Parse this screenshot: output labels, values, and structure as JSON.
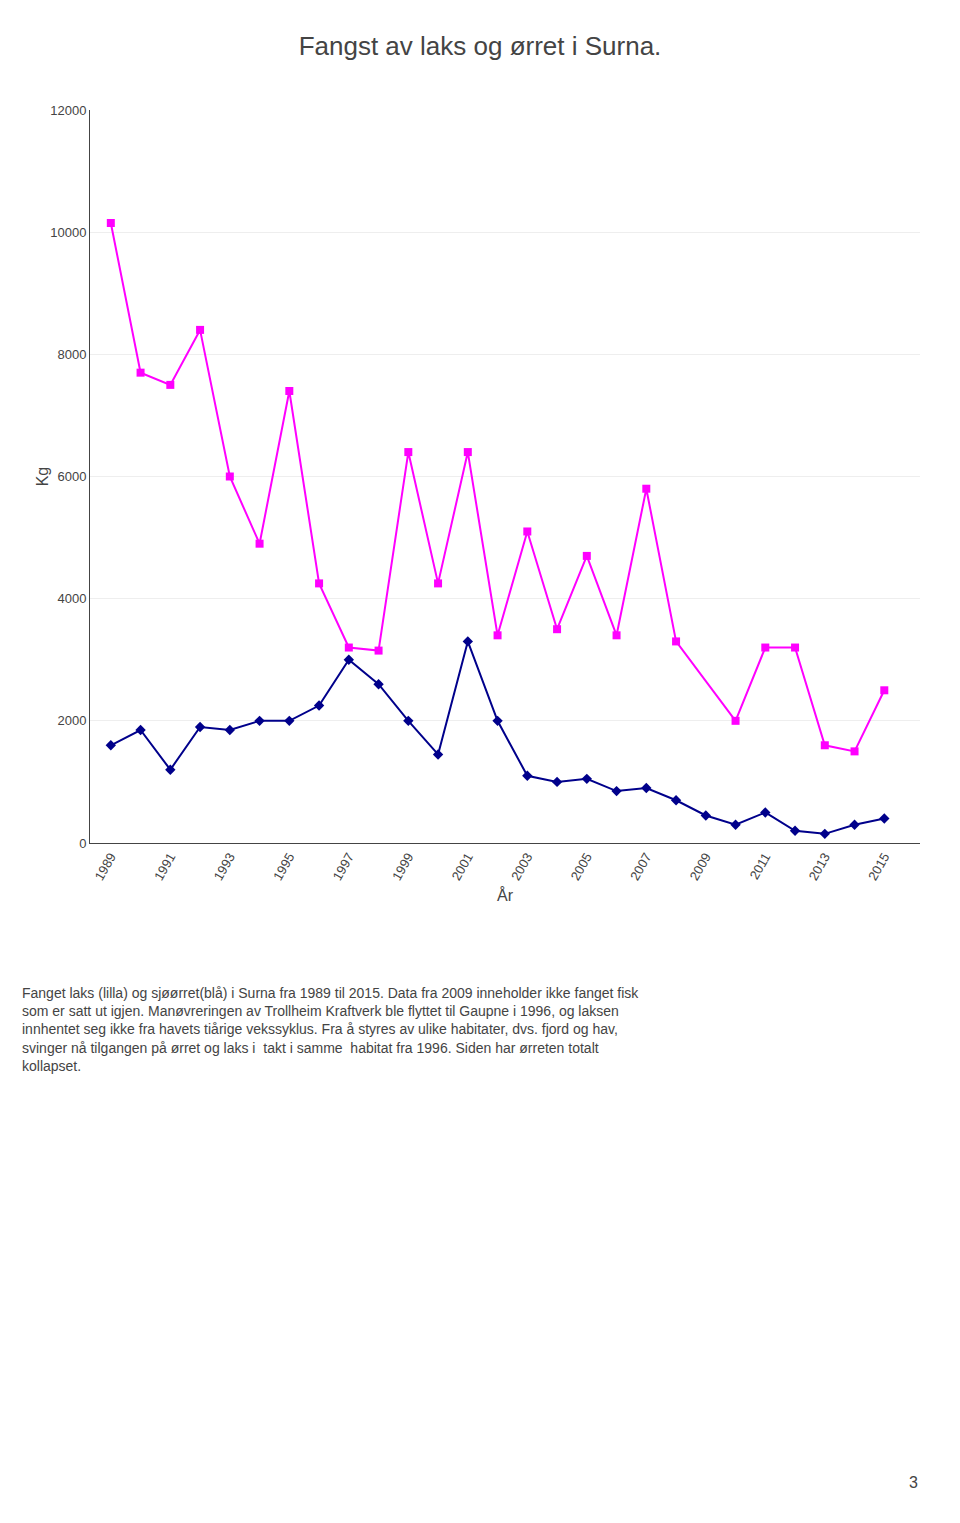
{
  "chart_data": {
    "type": "line",
    "title": "Fangst av laks og ørret i Surna.",
    "xlabel": "År",
    "ylabel": "Kg",
    "x": [
      1989,
      1990,
      1991,
      1992,
      1993,
      1994,
      1995,
      1996,
      1997,
      1998,
      1999,
      2000,
      2001,
      2002,
      2003,
      2004,
      2005,
      2006,
      2007,
      2008,
      2009,
      2010,
      2011,
      2012,
      2013,
      2014,
      2015
    ],
    "series": [
      {
        "color": "#FF00FF",
        "marker": "square",
        "values": [
          10150,
          7700,
          7500,
          8400,
          6000,
          4900,
          7400,
          4250,
          3200,
          3150,
          6400,
          4250,
          6400,
          3400,
          5100,
          3500,
          4700,
          3400,
          5800,
          3300,
          null,
          2000,
          3200,
          3200,
          1600,
          1500,
          2500
        ]
      },
      {
        "color": "#00008B",
        "marker": "diamond",
        "values": [
          1600,
          1850,
          1200,
          1900,
          1850,
          2000,
          2000,
          2250,
          3000,
          2600,
          2000,
          1450,
          3300,
          2000,
          1100,
          1000,
          1050,
          850,
          900,
          700,
          450,
          300,
          500,
          200,
          150,
          300,
          400
        ]
      }
    ],
    "xlim": [
      1988.3,
      2016.2
    ],
    "xticks": [
      1989,
      1991,
      1993,
      1995,
      1997,
      1999,
      2001,
      2003,
      2005,
      2007,
      2009,
      2011,
      2013,
      2015
    ],
    "ylim": [
      0,
      12000
    ],
    "yticks": [
      0,
      2000,
      4000,
      6000,
      8000,
      10000,
      12000
    ],
    "grid": true,
    "annotations": [
      "Fanget laks (lilla) og sjøørret(blå) i Surna fra 1989 til 2015. Data fra 2009 inneholder ikke fanget fisk\nsom er satt ut igjen. Manøvreringen av Trollheim Kraftverk ble flyttet til Gaupne i 1996, og laksen\ninnhentet seg ikke fra havets tiårige vekssyklus. Fra å styres av ulike habitater, dvs. fjord og hav,\nsvinger nå tilgangen på ørret og laks i  takt i samme  habitat fra 1996. Siden har ørreten totalt\nkollapset.",
      "3"
    ]
  }
}
